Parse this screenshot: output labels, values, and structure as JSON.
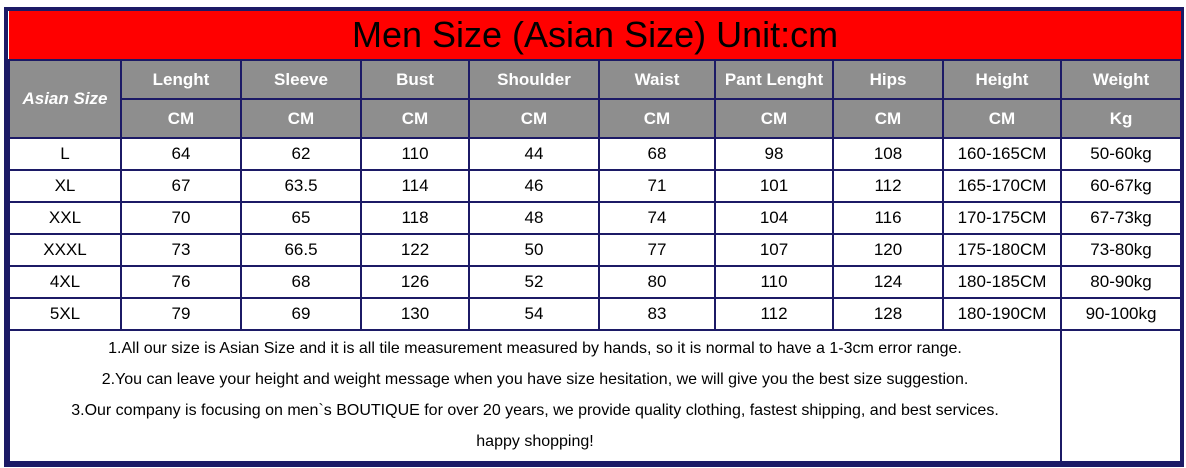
{
  "title": "Men Size (Asian Size) Unit:cm",
  "header": {
    "first": "Asian Size",
    "columns": [
      "Lenght",
      "Sleeve",
      "Bust",
      "Shoulder",
      "Waist",
      "Pant Lenght",
      "Hips",
      "Height",
      "Weight"
    ],
    "units": [
      "CM",
      "CM",
      "CM",
      "CM",
      "CM",
      "CM",
      "CM",
      "CM",
      "Kg"
    ]
  },
  "rows": [
    [
      "L",
      "64",
      "62",
      "110",
      "44",
      "68",
      "98",
      "108",
      "160-165CM",
      "50-60kg"
    ],
    [
      "XL",
      "67",
      "63.5",
      "114",
      "46",
      "71",
      "101",
      "112",
      "165-170CM",
      "60-67kg"
    ],
    [
      "XXL",
      "70",
      "65",
      "118",
      "48",
      "74",
      "104",
      "116",
      "170-175CM",
      "67-73kg"
    ],
    [
      "XXXL",
      "73",
      "66.5",
      "122",
      "50",
      "77",
      "107",
      "120",
      "175-180CM",
      "73-80kg"
    ],
    [
      "4XL",
      "76",
      "68",
      "126",
      "52",
      "80",
      "110",
      "124",
      "180-185CM",
      "80-90kg"
    ],
    [
      "5XL",
      "79",
      "69",
      "130",
      "54",
      "83",
      "112",
      "128",
      "180-190CM",
      "90-100kg"
    ]
  ],
  "notes": [
    "1.All our size is Asian Size and it is all tile measurement measured by hands, so it is normal to have a 1-3cm error range.",
    "2.You can leave your height and weight message when you have size hesitation, we will give you the best size suggestion.",
    "3.Our company is focusing on men`s BOUTIQUE for over 20 years, we provide quality clothing, fastest shipping, and best services.",
    "happy shopping!"
  ],
  "colors": {
    "title_bg": "#ff0000",
    "header_bg": "#8e8e8e",
    "border": "#1c1a66"
  }
}
